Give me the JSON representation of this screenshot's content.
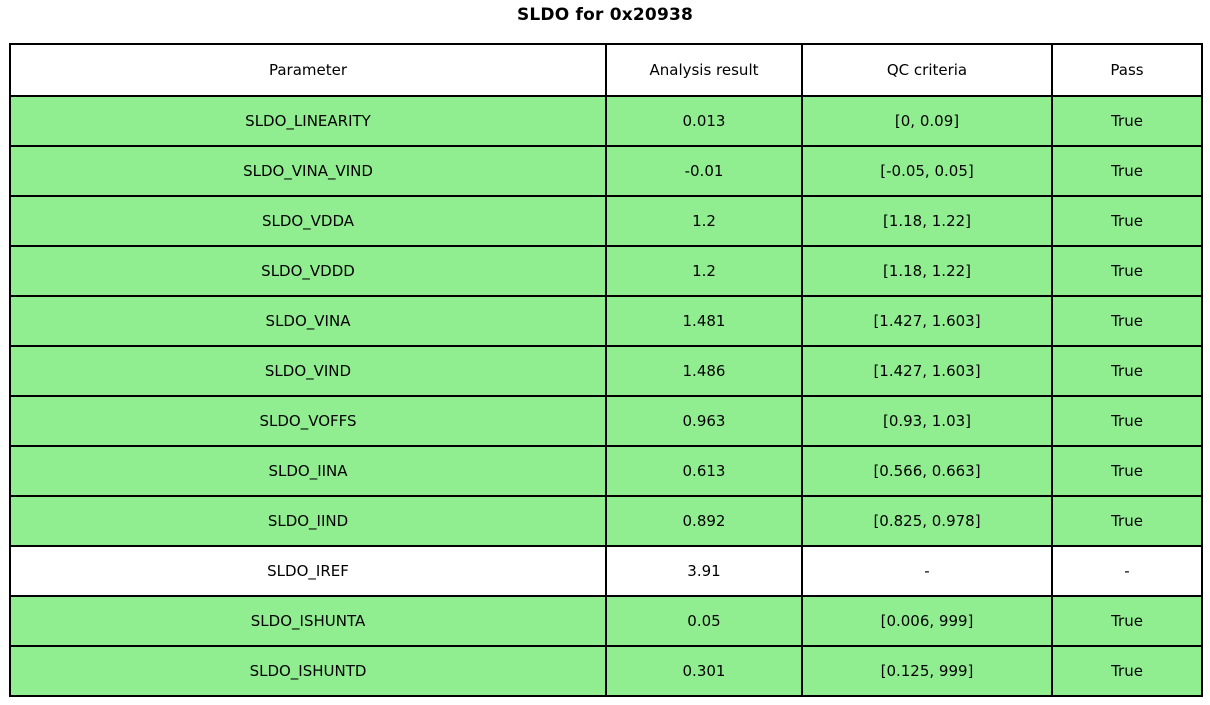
{
  "colors": {
    "pass_row_bg": "#90ee90",
    "neutral_row_bg": "#ffffff",
    "header_bg": "#ffffff",
    "border": "#000000",
    "text": "#000000"
  },
  "chart_data": {
    "type": "table",
    "title": "SLDO for 0x20938",
    "columns": [
      "Parameter",
      "Analysis result",
      "QC criteria",
      "Pass"
    ],
    "rows": [
      {
        "parameter": "SLDO_LINEARITY",
        "analysis_result": "0.013",
        "qc_criteria": "[0, 0.09]",
        "pass": "True"
      },
      {
        "parameter": "SLDO_VINA_VIND",
        "analysis_result": "-0.01",
        "qc_criteria": "[-0.05, 0.05]",
        "pass": "True"
      },
      {
        "parameter": "SLDO_VDDA",
        "analysis_result": "1.2",
        "qc_criteria": "[1.18, 1.22]",
        "pass": "True"
      },
      {
        "parameter": "SLDO_VDDD",
        "analysis_result": "1.2",
        "qc_criteria": "[1.18, 1.22]",
        "pass": "True"
      },
      {
        "parameter": "SLDO_VINA",
        "analysis_result": "1.481",
        "qc_criteria": "[1.427, 1.603]",
        "pass": "True"
      },
      {
        "parameter": "SLDO_VIND",
        "analysis_result": "1.486",
        "qc_criteria": "[1.427, 1.603]",
        "pass": "True"
      },
      {
        "parameter": "SLDO_VOFFS",
        "analysis_result": "0.963",
        "qc_criteria": "[0.93, 1.03]",
        "pass": "True"
      },
      {
        "parameter": "SLDO_IINA",
        "analysis_result": "0.613",
        "qc_criteria": "[0.566, 0.663]",
        "pass": "True"
      },
      {
        "parameter": "SLDO_IIND",
        "analysis_result": "0.892",
        "qc_criteria": "[0.825, 0.978]",
        "pass": "True"
      },
      {
        "parameter": "SLDO_IREF",
        "analysis_result": "3.91",
        "qc_criteria": "-",
        "pass": "-"
      },
      {
        "parameter": "SLDO_ISHUNTA",
        "analysis_result": "0.05",
        "qc_criteria": "[0.006, 999]",
        "pass": "True"
      },
      {
        "parameter": "SLDO_ISHUNTD",
        "analysis_result": "0.301",
        "qc_criteria": "[0.125, 999]",
        "pass": "True"
      }
    ]
  }
}
